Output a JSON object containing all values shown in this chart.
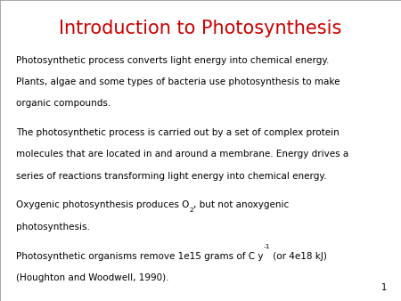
{
  "title": "Introduction to Photosynthesis",
  "title_color": "#CC0000",
  "title_fontsize": 15,
  "background_color": "#FFFFFF",
  "border_color": "#999999",
  "page_number": "1",
  "body_fontsize": 7.5,
  "body_color": "#000000",
  "body_font": "DejaVu Sans",
  "title_font": "DejaVu Sans",
  "para1_lines": [
    "Photosynthetic process converts light energy into chemical energy.",
    "Plants, algae and some types of bacteria use photosynthesis to make",
    "organic compounds."
  ],
  "para2_lines": [
    "The photosynthetic process is carried out by a set of complex protein",
    "molecules that are located in and around a membrane. Energy drives a",
    "series of reactions transforming light energy into chemical energy."
  ],
  "para3_line1_before": "Oxygenic photosynthesis produces O",
  "para3_sub": "2",
  "para3_line1_after": ", but not anoxygenic",
  "para3_line2": "photosynthesis.",
  "para4_line1_before": "Photosynthetic organisms remove 1e15 grams of C y",
  "para4_sup": "-1",
  "para4_line1_after": " (or 4e18 kJ)",
  "para4_line2": "(Houghton and Woodwell, 1990)."
}
